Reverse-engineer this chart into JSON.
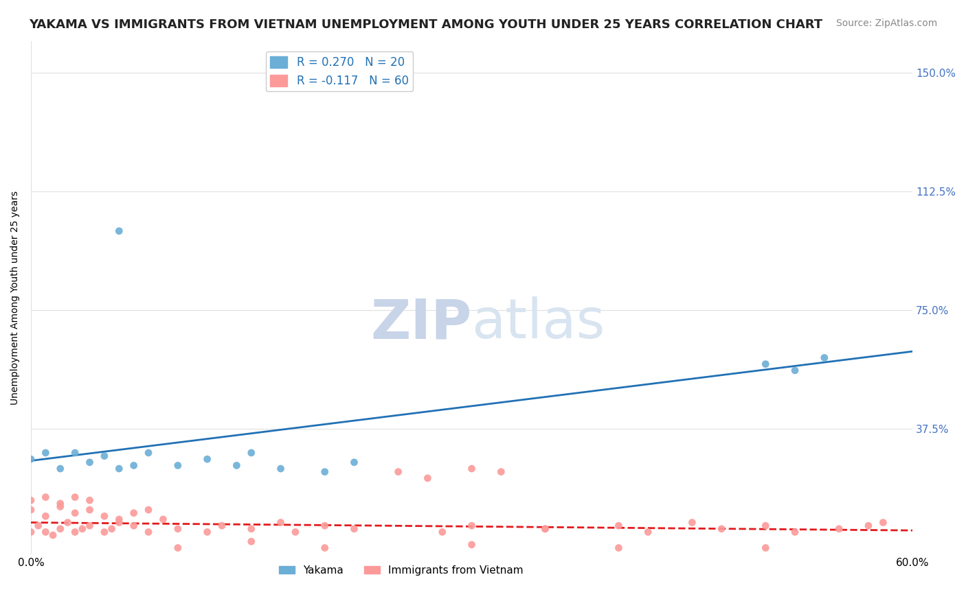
{
  "title": "YAKAMA VS IMMIGRANTS FROM VIETNAM UNEMPLOYMENT AMONG YOUTH UNDER 25 YEARS CORRELATION CHART",
  "source": "Source: ZipAtlas.com",
  "ylabel": "Unemployment Among Youth under 25 years",
  "ytick_labels": [
    "37.5%",
    "75.0%",
    "112.5%",
    "150.0%"
  ],
  "ytick_values": [
    0.375,
    0.75,
    1.125,
    1.5
  ],
  "xlim": [
    0.0,
    0.6
  ],
  "ylim": [
    -0.02,
    1.6
  ],
  "legend_entries": [
    {
      "label": "R = 0.270   N = 20",
      "color": "#6baed6"
    },
    {
      "label": "R = -0.117   N = 60",
      "color": "#fb9a99"
    }
  ],
  "watermark_zip": "ZIP",
  "watermark_atlas": "atlas",
  "yakama_scatter_x": [
    0.0,
    0.01,
    0.02,
    0.03,
    0.04,
    0.05,
    0.06,
    0.07,
    0.08,
    0.1,
    0.12,
    0.14,
    0.15,
    0.17,
    0.2,
    0.22,
    0.5,
    0.52,
    0.54
  ],
  "yakama_scatter_y": [
    0.28,
    0.3,
    0.25,
    0.3,
    0.27,
    0.29,
    0.25,
    0.26,
    0.3,
    0.26,
    0.28,
    0.26,
    0.3,
    0.25,
    0.24,
    0.27,
    0.58,
    0.56,
    0.6
  ],
  "yakama_outlier_x": [
    0.06
  ],
  "yakama_outlier_y": [
    1.0
  ],
  "yakama_line_x": [
    0.0,
    0.6
  ],
  "yakama_line_y": [
    0.275,
    0.62
  ],
  "vietnam_scatter_x": [
    0.0,
    0.005,
    0.01,
    0.015,
    0.02,
    0.025,
    0.03,
    0.035,
    0.04,
    0.05,
    0.055,
    0.06,
    0.07,
    0.08,
    0.09,
    0.1,
    0.12,
    0.13,
    0.15,
    0.17,
    0.18,
    0.2,
    0.22,
    0.25,
    0.27,
    0.3,
    0.32,
    0.35,
    0.4,
    0.42,
    0.45,
    0.47,
    0.5,
    0.52,
    0.55,
    0.57,
    0.58,
    0.3,
    0.35,
    0.28
  ],
  "vietnam_scatter_y": [
    0.05,
    0.07,
    0.05,
    0.04,
    0.06,
    0.08,
    0.05,
    0.06,
    0.07,
    0.05,
    0.06,
    0.08,
    0.07,
    0.05,
    0.09,
    0.06,
    0.05,
    0.07,
    0.06,
    0.08,
    0.05,
    0.07,
    0.06,
    0.24,
    0.22,
    0.25,
    0.24,
    0.06,
    0.07,
    0.05,
    0.08,
    0.06,
    0.07,
    0.05,
    0.06,
    0.07,
    0.08,
    0.07,
    0.06,
    0.05
  ],
  "vietnam_low_y": [
    0.0,
    0.02,
    0.0,
    0.01,
    0.0,
    0.0
  ],
  "vietnam_low_x": [
    0.1,
    0.15,
    0.2,
    0.3,
    0.4,
    0.5
  ],
  "vietnam_line_x": [
    0.0,
    0.6
  ],
  "vietnam_line_y": [
    0.08,
    0.055
  ],
  "extra_vn_x": [
    0.0,
    0.01,
    0.02,
    0.03,
    0.04,
    0.05,
    0.06,
    0.07,
    0.08,
    0.0,
    0.01,
    0.02,
    0.03,
    0.04
  ],
  "extra_vn_y": [
    0.12,
    0.1,
    0.13,
    0.11,
    0.12,
    0.1,
    0.09,
    0.11,
    0.12,
    0.15,
    0.16,
    0.14,
    0.16,
    0.15
  ],
  "yakama_color": "#6baed6",
  "vietnam_color": "#fb9a99",
  "yakama_line_color": "#2171b5",
  "vietnam_line_color": "#e31a1c",
  "grid_color": "#e0e0e0",
  "background_color": "#ffffff",
  "title_fontsize": 13,
  "source_fontsize": 10,
  "axis_label_fontsize": 10,
  "legend_fontsize": 12,
  "watermark_color_zip": "#c8d4e8",
  "watermark_color_atlas": "#d8e4f0",
  "watermark_fontsize": 58
}
